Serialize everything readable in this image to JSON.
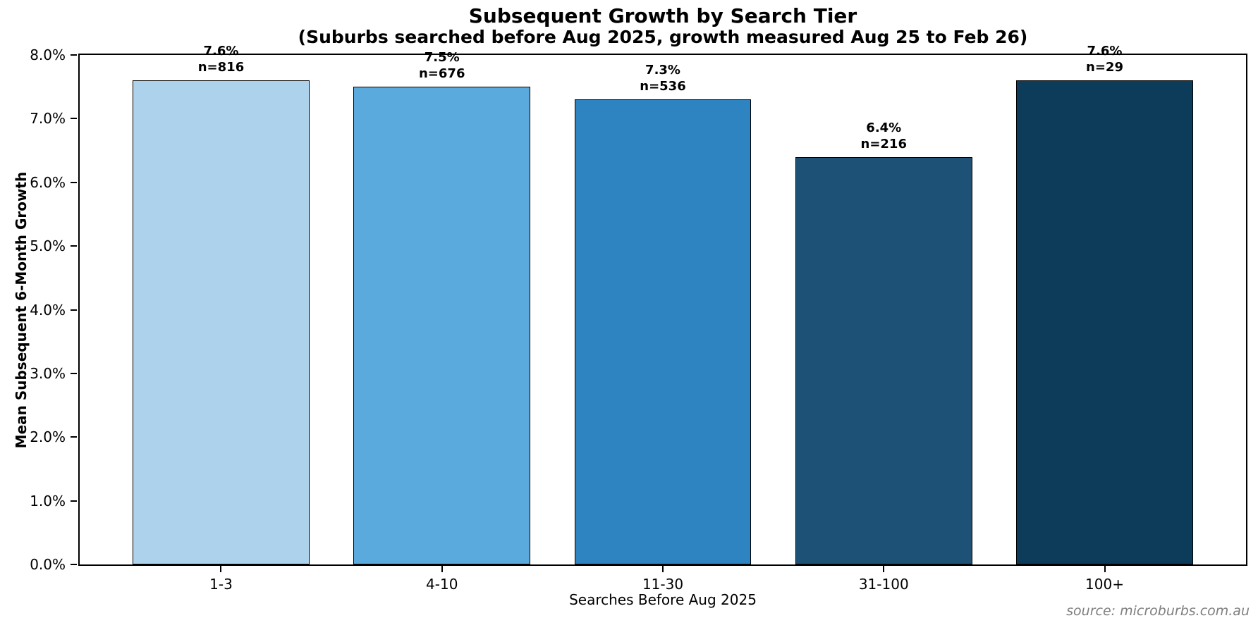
{
  "chart_data": {
    "type": "bar",
    "title": "Subsequent Growth by Search Tier",
    "subtitle": "(Suburbs searched before Aug 2025, growth measured Aug 25 to Feb 26)",
    "xlabel": "Searches Before Aug 2025",
    "ylabel": "Mean Subsequent 6-Month Growth",
    "categories": [
      "1-3",
      "4-10",
      "11-30",
      "31-100",
      "100+"
    ],
    "values": [
      7.6,
      7.5,
      7.3,
      6.4,
      7.6
    ],
    "sample_sizes": [
      816,
      676,
      536,
      216,
      29
    ],
    "bar_value_labels": [
      "7.6%",
      "7.5%",
      "7.3%",
      "6.4%",
      "7.6%"
    ],
    "bar_n_labels": [
      "n=816",
      "n=676",
      "n=536",
      "n=216",
      "n=29"
    ],
    "bar_colors": [
      "#ADD3EC",
      "#5BAADE",
      "#2E84C1",
      "#1D5176",
      "#0C3C5A"
    ],
    "bar_edge_color": "#000000",
    "ylim": [
      0,
      8
    ],
    "ytick_labels": [
      "0.0%",
      "1.0%",
      "2.0%",
      "3.0%",
      "4.0%",
      "5.0%",
      "6.0%",
      "7.0%",
      "8.0%"
    ],
    "grid": false,
    "legend": "none",
    "source": "source: microburbs.com.au"
  }
}
